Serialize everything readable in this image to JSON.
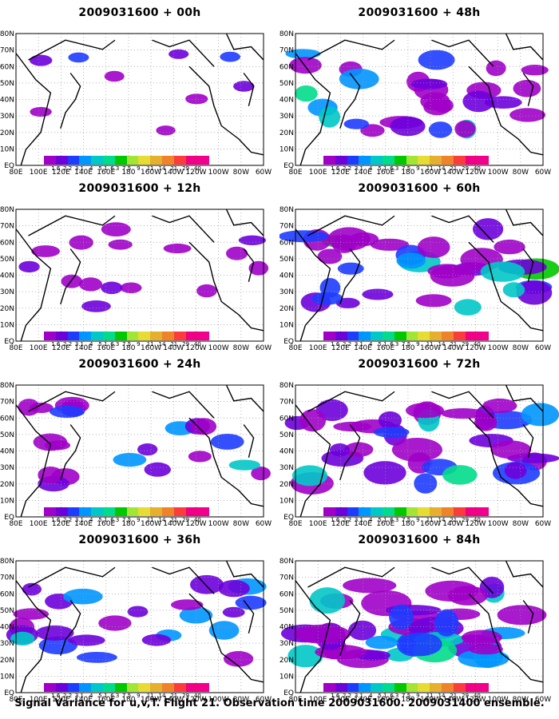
{
  "figure": {
    "caption": "Signal Variance for u,v,T. Flight 21. Observation time 2009031600. 2009031400 ensemble."
  },
  "panels": [
    {
      "title": "2009031600 + 00h",
      "coverage": 0.08,
      "intensity": 0.35
    },
    {
      "title": "2009031600 + 48h",
      "coverage": 0.55,
      "intensity": 0.55
    },
    {
      "title": "2009031600 + 12h",
      "coverage": 0.22,
      "intensity": 0.4
    },
    {
      "title": "2009031600 + 60h",
      "coverage": 0.65,
      "intensity": 0.6
    },
    {
      "title": "2009031600 + 24h",
      "coverage": 0.35,
      "intensity": 0.45
    },
    {
      "title": "2009031600 + 72h",
      "coverage": 0.7,
      "intensity": 0.65
    },
    {
      "title": "2009031600 + 36h",
      "coverage": 0.45,
      "intensity": 0.5
    },
    {
      "title": "2009031600 + 84h",
      "coverage": 0.8,
      "intensity": 0.75
    }
  ],
  "lat_labels": [
    "80N",
    "70N",
    "60N",
    "50N",
    "40N",
    "30N",
    "20N",
    "10N",
    "EQ"
  ],
  "lon_labels": [
    "80E",
    "100E",
    "120E",
    "140E",
    "160E",
    "180",
    "160W",
    "140W",
    "120W",
    "100W",
    "80W",
    "60W"
  ],
  "colorbar": {
    "labels": [
      "1.6",
      "2.2",
      "3.1",
      "4",
      "5.1",
      "6.3",
      "7.5",
      "9",
      "11",
      "14",
      "21",
      "29",
      "40"
    ],
    "colors": [
      "#a000c8",
      "#6e00dc",
      "#1e3cff",
      "#0096ff",
      "#00c8c8",
      "#00dc8c",
      "#00c800",
      "#a0e632",
      "#e6dc32",
      "#e6af2d",
      "#f08228",
      "#fa3c3c",
      "#f00082"
    ]
  }
}
